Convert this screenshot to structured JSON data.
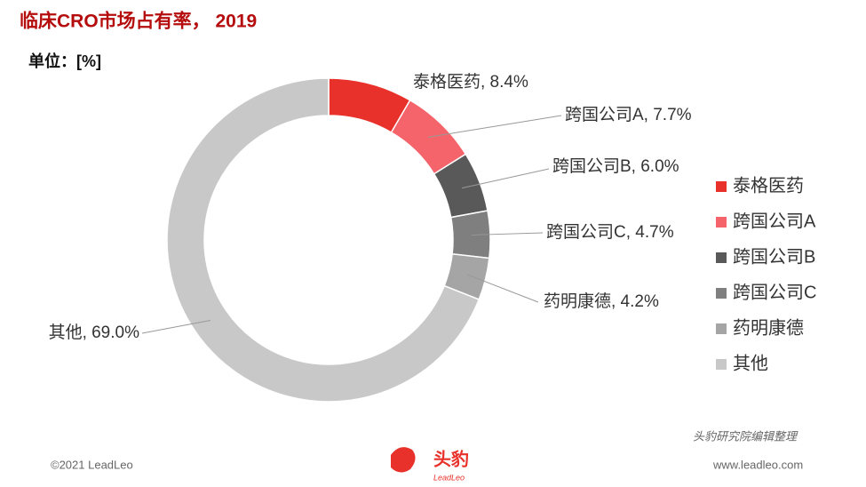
{
  "chart_data": {
    "type": "donut",
    "title": "临床CRO市场占有率， 2019",
    "subtitle": "单位：[%]",
    "categories": [
      "泰格医药",
      "跨国公司A",
      "跨国公司B",
      "跨国公司C",
      "药明康德",
      "其他"
    ],
    "values": [
      8.4,
      7.7,
      6.0,
      4.7,
      4.2,
      69.0
    ],
    "value_labels": [
      "泰格医药, 8.4%",
      "跨国公司A, 7.7%",
      "跨国公司B, 6.0%",
      "跨国公司C, 4.7%",
      "药明康德, 4.2%",
      "其他, 69.0%"
    ],
    "colors": [
      "#e8312a",
      "#f4646a",
      "#595959",
      "#7f7f7f",
      "#a5a5a5",
      "#c8c8c8"
    ],
    "legend": "right"
  },
  "footer": {
    "copyright": "©2021 LeadLeo",
    "source": "头豹研究院编辑整理",
    "website": "www.leadleo.com",
    "logo_text": "头豹",
    "logo_sub": "LeadLeo"
  }
}
